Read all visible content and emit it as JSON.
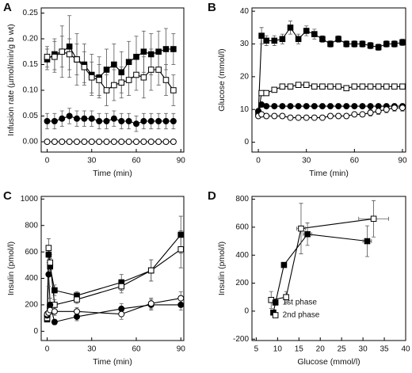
{
  "chart_data": [
    {
      "type": "line",
      "panel": "A",
      "xlabel": "Time (min)",
      "ylabel": "Infusion rate (µmol/min/g b wt)",
      "xlim": [
        -4,
        92
      ],
      "xticks": [
        0,
        30,
        60,
        90
      ],
      "ylim": [
        -0.02,
        0.26
      ],
      "yticks": [
        {
          "value": 0,
          "label": "0.00"
        },
        0.05,
        {
          "value": 0.1,
          "label": "0.10"
        },
        0.15,
        {
          "value": 0.2,
          "label": "0.20"
        },
        0.25
      ],
      "x": [
        0,
        5,
        10,
        15,
        20,
        25,
        30,
        35,
        40,
        45,
        50,
        55,
        60,
        65,
        70,
        75,
        80,
        85
      ],
      "series": [
        {
          "marker": "square",
          "fill": "filled",
          "color": "#000000",
          "values": [
            0.16,
            0.17,
            0.175,
            0.185,
            0.16,
            0.15,
            0.13,
            0.125,
            0.14,
            0.15,
            0.135,
            0.155,
            0.165,
            0.175,
            0.17,
            0.175,
            0.18,
            0.18
          ],
          "errors": [
            0.02,
            0.03,
            0.05,
            0.06,
            0.05,
            0.04,
            0.04,
            0.04,
            0.04,
            0.04,
            0.04,
            0.04,
            0.04,
            0.04,
            0.04,
            0.04,
            0.04,
            0.03
          ]
        },
        {
          "marker": "square",
          "fill": "open",
          "color": "#000000",
          "values": [
            0.165,
            0.165,
            0.175,
            0.17,
            0.16,
            0.145,
            0.125,
            0.12,
            0.1,
            0.11,
            0.115,
            0.12,
            0.13,
            0.125,
            0.14,
            0.14,
            0.12,
            0.1
          ],
          "errors": [
            0.02,
            0.03,
            0.03,
            0.03,
            0.03,
            0.03,
            0.03,
            0.03,
            0.03,
            0.03,
            0.03,
            0.03,
            0.03,
            0.04,
            0.04,
            0.03,
            0.03,
            0.03
          ]
        },
        {
          "marker": "circle",
          "fill": "filled",
          "color": "#000000",
          "values": [
            0.04,
            0.04,
            0.045,
            0.05,
            0.045,
            0.045,
            0.045,
            0.04,
            0.04,
            0.045,
            0.04,
            0.04,
            0.035,
            0.04,
            0.04,
            0.04,
            0.04,
            0.04
          ],
          "errors": [
            0.015,
            0.015,
            0.015,
            0.015,
            0.015,
            0.015,
            0.015,
            0.015,
            0.015,
            0.015,
            0.015,
            0.015,
            0.015,
            0.015,
            0.015,
            0.015,
            0.015,
            0.015
          ]
        },
        {
          "marker": "circle",
          "fill": "open",
          "color": "#000000",
          "values": [
            0,
            0,
            0,
            0,
            0,
            0,
            0,
            0,
            0,
            0,
            0,
            0,
            0,
            0,
            0,
            0,
            0,
            0
          ]
        }
      ]
    },
    {
      "type": "line",
      "panel": "B",
      "xlabel": "Time (min)",
      "ylabel": "Glucose (mmol/l)",
      "xlim": [
        -4,
        92
      ],
      "xticks": [
        0,
        30,
        60,
        90
      ],
      "ylim": [
        -3,
        41
      ],
      "yticks": [
        0,
        10,
        20,
        30,
        40
      ],
      "x": [
        0,
        2,
        5,
        10,
        15,
        20,
        25,
        30,
        35,
        40,
        45,
        50,
        55,
        60,
        65,
        70,
        75,
        80,
        85,
        90
      ],
      "series": [
        {
          "marker": "square",
          "fill": "filled",
          "color": "#000000",
          "values": [
            9,
            32.5,
            31,
            31,
            31.5,
            35,
            31.5,
            34,
            33,
            31.5,
            30,
            31.5,
            30,
            30,
            30,
            29.5,
            29,
            30,
            30,
            30.5
          ],
          "errors": [
            1,
            2.5,
            1.5,
            1.5,
            1.5,
            2,
            1.5,
            1.5,
            1.5,
            1,
            1,
            1,
            1,
            1,
            1,
            1,
            1,
            1,
            1,
            1
          ]
        },
        {
          "marker": "square",
          "fill": "open",
          "color": "#000000",
          "values": [
            8.5,
            15,
            15,
            16,
            17,
            17,
            17.5,
            17.5,
            17,
            17,
            17,
            17,
            16.5,
            17,
            17,
            17,
            17,
            17,
            17,
            17
          ]
        },
        {
          "marker": "circle",
          "fill": "filled",
          "color": "#000000",
          "values": [
            9.5,
            11.5,
            11,
            11,
            11,
            11,
            11,
            11,
            11,
            11,
            11,
            11,
            11,
            11,
            11,
            11,
            11,
            11,
            11,
            11
          ]
        },
        {
          "marker": "circle",
          "fill": "open",
          "color": "#000000",
          "values": [
            8,
            8.5,
            8,
            8,
            8,
            7.5,
            7.5,
            7.5,
            7.5,
            7.5,
            8,
            8,
            8,
            8.5,
            8.5,
            9,
            9.5,
            10,
            10.5,
            10.5
          ],
          "errors": [
            0.5,
            0.5,
            0.5,
            0.5,
            0.5,
            0.5,
            0.5,
            0.5,
            0.5,
            0.5,
            0.5,
            0.5,
            0.5,
            0.5,
            0.5,
            1,
            1,
            1,
            1,
            1
          ]
        }
      ]
    },
    {
      "type": "line",
      "panel": "C",
      "xlabel": "Time (min)",
      "ylabel": "Insulin (pmol/l)",
      "xlim": [
        -4,
        92
      ],
      "xticks": [
        0,
        30,
        60,
        90
      ],
      "ylim": [
        -70,
        1020
      ],
      "yticks": [
        0,
        200,
        400,
        600,
        800,
        1000
      ],
      "x": [
        0,
        1,
        2,
        5,
        20,
        50,
        70,
        90
      ],
      "series": [
        {
          "marker": "square",
          "fill": "filled",
          "color": "#000000",
          "values": [
            90,
            580,
            490,
            310,
            270,
            370,
            460,
            730
          ],
          "errors": [
            20,
            60,
            60,
            40,
            30,
            60,
            80,
            140
          ]
        },
        {
          "marker": "square",
          "fill": "open",
          "color": "#000000",
          "values": [
            100,
            630,
            520,
            200,
            240,
            340,
            460,
            620
          ],
          "errors": [
            20,
            70,
            60,
            40,
            30,
            50,
            80,
            140
          ]
        },
        {
          "marker": "circle",
          "fill": "filled",
          "color": "#000000",
          "values": [
            120,
            430,
            200,
            70,
            110,
            170,
            200,
            200
          ],
          "errors": [
            20,
            90,
            50,
            20,
            30,
            40,
            40,
            40
          ]
        },
        {
          "marker": "circle",
          "fill": "open",
          "color": "#000000",
          "values": [
            130,
            140,
            160,
            150,
            150,
            130,
            210,
            250
          ],
          "errors": [
            20,
            30,
            30,
            30,
            30,
            40,
            40,
            50
          ]
        }
      ]
    },
    {
      "type": "line",
      "panel": "D",
      "xlabel": "Glucose (mmol/l)",
      "ylabel": "Insulin (pmol/l)",
      "xlim": [
        4,
        40
      ],
      "xticks": [
        5,
        10,
        15,
        20,
        25,
        30,
        35,
        40
      ],
      "ylim": [
        -210,
        820
      ],
      "yticks": [
        -200,
        0,
        200,
        400,
        600,
        800
      ],
      "legend": "lower right",
      "series": [
        {
          "name": "1st phase",
          "marker": "square",
          "fill": "filled",
          "color": "#000000",
          "x": [
            9,
            11.5,
            17,
            31
          ],
          "values": [
            -10,
            330,
            550,
            500
          ],
          "errors": [
            0,
            0,
            80,
            110
          ],
          "xerrors": [
            0,
            0,
            1,
            1
          ]
        },
        {
          "name": "2nd phase",
          "marker": "square",
          "fill": "open",
          "color": "#000000",
          "x": [
            8.5,
            12,
            15.5,
            32.5
          ],
          "values": [
            80,
            100,
            590,
            660
          ],
          "errors": [
            60,
            40,
            180,
            130
          ],
          "xerrors": [
            0.5,
            0.5,
            1,
            3.5
          ]
        }
      ]
    }
  ]
}
